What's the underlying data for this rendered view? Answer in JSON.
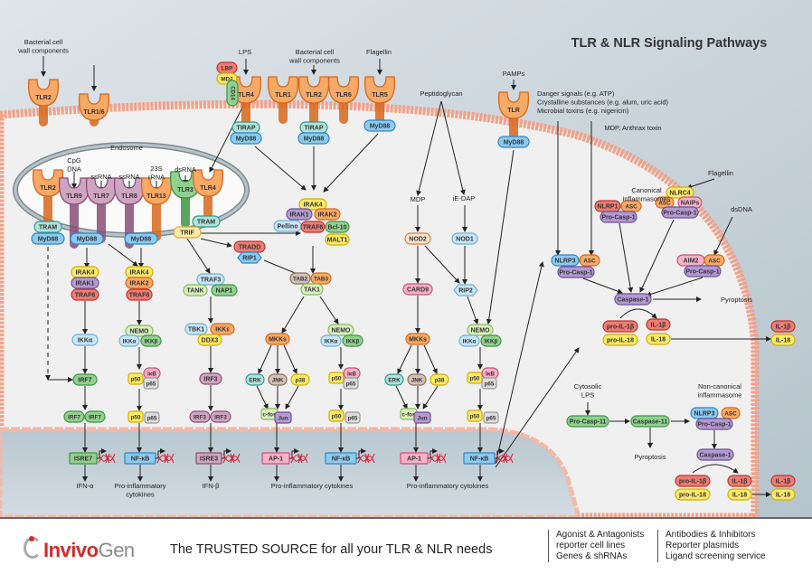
{
  "title": "TLR & NLR Signaling Pathways",
  "palette": {
    "yellow": [
      "#fbe96a",
      "#d2ad00"
    ],
    "lightyellow": [
      "#fde9a6",
      "#e0a93a"
    ],
    "purple": [
      "#b39ad2",
      "#6e4f9a"
    ],
    "orange": [
      "#f7a965",
      "#d8671b"
    ],
    "red": [
      "#ee7c74",
      "#c0332d"
    ],
    "blue": [
      "#8ccaf0",
      "#2f86c4"
    ],
    "lightblue": [
      "#c8e6f6",
      "#6fb0d6"
    ],
    "green": [
      "#92d08f",
      "#3c9642"
    ],
    "lightgreen": [
      "#d9f0bd",
      "#89b75c"
    ],
    "teal": [
      "#b1e2da",
      "#2c9a8c"
    ],
    "grey": [
      "#dcdcdc",
      "#999999"
    ],
    "pink": [
      "#f4b1c7",
      "#cc4f7a"
    ],
    "brown": [
      "#d3c0b6",
      "#8b6f62"
    ],
    "mauve": [
      "#cfa6c2",
      "#8a4d78"
    ],
    "nodeorange": [
      "#fbe3cf",
      "#e07a35"
    ],
    "membrane": "#f4a088",
    "dna": "#d6283a"
  },
  "labels": [
    {
      "id": "bact1",
      "lines": [
        "Bacterial cell",
        "wall components"
      ]
    },
    {
      "id": "lps",
      "lines": [
        "LPS"
      ]
    },
    {
      "id": "bact2",
      "lines": [
        "Bacterial cell",
        "wall components"
      ]
    },
    {
      "id": "flag1",
      "lines": [
        "Flagellin"
      ]
    },
    {
      "id": "pamps",
      "lines": [
        "PAMPs"
      ]
    },
    {
      "id": "pept",
      "lines": [
        "Peptidoglycan"
      ]
    },
    {
      "id": "danger",
      "lines": [
        "Danger signals (e.g. ATP)",
        "Crystalline substances (e.g. alum, uric acid)",
        "Microbial toxins (e.g. nigericin)"
      ]
    },
    {
      "id": "mdpanth",
      "lines": [
        "MDP, Anthrax toxin"
      ]
    },
    {
      "id": "flag2",
      "lines": [
        "Flagellin"
      ]
    },
    {
      "id": "canon",
      "lines": [
        "Canonical",
        "inflammasomes"
      ]
    },
    {
      "id": "dsdna",
      "lines": [
        "dsDNA"
      ]
    },
    {
      "id": "endosome",
      "lines": [
        "Endosome"
      ]
    },
    {
      "id": "cpg",
      "lines": [
        "CpG",
        "DNA"
      ]
    },
    {
      "id": "ssrna1",
      "lines": [
        "ssRNA"
      ]
    },
    {
      "id": "ssrna2",
      "lines": [
        "ssRNA"
      ]
    },
    {
      "id": "rrna",
      "lines": [
        "23S",
        "rRNA"
      ]
    },
    {
      "id": "dsrna",
      "lines": [
        "dsRNA"
      ]
    },
    {
      "id": "mdp",
      "lines": [
        "MDP"
      ]
    },
    {
      "id": "iedap",
      "lines": [
        "iE-DAP"
      ]
    },
    {
      "id": "pyro1",
      "lines": [
        "Pyroptosis"
      ]
    },
    {
      "id": "pyro2",
      "lines": [
        "Pyroptosis"
      ]
    },
    {
      "id": "cytlps",
      "lines": [
        "Cytosolic",
        "LPS"
      ]
    },
    {
      "id": "noncanon",
      "lines": [
        "Non-canonical",
        "inflammasome"
      ]
    },
    {
      "id": "ifna",
      "lines": [
        "IFN-α"
      ]
    },
    {
      "id": "proinfl1",
      "lines": [
        "Pro-inflammatory",
        "cytokines"
      ]
    },
    {
      "id": "ifnb",
      "lines": [
        "IFN-β"
      ]
    },
    {
      "id": "proinfl2",
      "lines": [
        "Pro-inflammatory cytokines"
      ]
    },
    {
      "id": "proinfl3",
      "lines": [
        "Pro-inflammatory cytokines"
      ]
    }
  ],
  "receptors": [
    {
      "id": "r_tlr2a",
      "label": "TLR2",
      "color": "orange"
    },
    {
      "id": "r_tlr16",
      "label": "TLR1/6",
      "color": "orange"
    },
    {
      "id": "r_tlr4a",
      "label": "TLR4",
      "color": "orange"
    },
    {
      "id": "r_tlr1",
      "label": "TLR1",
      "color": "orange"
    },
    {
      "id": "r_tlr2b",
      "label": "TLR2",
      "color": "orange"
    },
    {
      "id": "r_tlr6",
      "label": "TLR6",
      "color": "orange"
    },
    {
      "id": "r_tlr5",
      "label": "TLR5",
      "color": "orange"
    },
    {
      "id": "r_tlr",
      "label": "TLR",
      "color": "orange"
    },
    {
      "id": "r_tlr2c",
      "label": "TLR2",
      "color": "orange"
    },
    {
      "id": "r_tlr9",
      "label": "TLR9",
      "color": "mauve"
    },
    {
      "id": "r_tlr7",
      "label": "TLR7",
      "color": "mauve"
    },
    {
      "id": "r_tlr8",
      "label": "TLR8",
      "color": "mauve"
    },
    {
      "id": "r_tlr13",
      "label": "TLR13",
      "color": "orange"
    },
    {
      "id": "r_tlr3",
      "label": "TLR3",
      "color": "green"
    },
    {
      "id": "r_tlr4b",
      "label": "TLR4",
      "color": "orange"
    }
  ],
  "nodes": [
    {
      "id": "lbp",
      "label": "LBP",
      "color": "red"
    },
    {
      "id": "md2",
      "label": "MD2",
      "color": "yellow"
    },
    {
      "id": "cd14",
      "label": "CD14",
      "color": "green"
    },
    {
      "id": "tirap1",
      "label": "TIRAP",
      "color": "teal"
    },
    {
      "id": "myd_t4",
      "label": "MyD88",
      "color": "blue"
    },
    {
      "id": "tirap2",
      "label": "TIRAP",
      "color": "teal"
    },
    {
      "id": "myd_t2",
      "label": "MyD88",
      "color": "blue"
    },
    {
      "id": "myd_t5",
      "label": "MyD88",
      "color": "blue"
    },
    {
      "id": "myd_tlr",
      "label": "MyD88",
      "color": "blue"
    },
    {
      "id": "tram1",
      "label": "TRAM",
      "color": "teal"
    },
    {
      "id": "myd_a",
      "label": "MyD88",
      "color": "blue"
    },
    {
      "id": "myd_b",
      "label": "MyD88",
      "color": "blue"
    },
    {
      "id": "myd_c",
      "label": "MyD88",
      "color": "blue"
    },
    {
      "id": "tram2",
      "label": "TRAM",
      "color": "teal"
    },
    {
      "id": "trif",
      "label": "TRIF",
      "color": "lightyellow"
    },
    {
      "id": "irak4a",
      "label": "IRAK4",
      "color": "yellow"
    },
    {
      "id": "irak1a",
      "label": "IRAK1",
      "color": "purple"
    },
    {
      "id": "traf6a",
      "label": "TRAF6",
      "color": "red"
    },
    {
      "id": "ikkaa",
      "label": "IKKα",
      "color": "lightblue"
    },
    {
      "id": "irf7a",
      "label": "IRF7",
      "color": "green"
    },
    {
      "id": "irf7b",
      "label": "IRF7",
      "color": "green"
    },
    {
      "id": "irf7c",
      "label": "IRF7",
      "color": "green"
    },
    {
      "id": "isre7",
      "label": "ISRE7",
      "color": "green",
      "shape": "rect"
    },
    {
      "id": "irak4b",
      "label": "IRAK4",
      "color": "yellow"
    },
    {
      "id": "irak2b",
      "label": "IRAK2",
      "color": "orange"
    },
    {
      "id": "traf6b",
      "label": "TRAF6",
      "color": "red"
    },
    {
      "id": "nemoa",
      "label": "NEMO",
      "color": "lightgreen"
    },
    {
      "id": "ikkab",
      "label": "IKKα",
      "color": "lightblue"
    },
    {
      "id": "ikkbb",
      "label": "IKKβ",
      "color": "green"
    },
    {
      "id": "p50a",
      "label": "p50",
      "color": "yellow",
      "shape": "sq"
    },
    {
      "id": "ikba",
      "label": "IκB",
      "color": "pink"
    },
    {
      "id": "p65a",
      "label": "p65",
      "color": "grey",
      "shape": "sq"
    },
    {
      "id": "p50b",
      "label": "p50",
      "color": "yellow",
      "shape": "sq"
    },
    {
      "id": "p65b",
      "label": "p65",
      "color": "grey",
      "shape": "sq"
    },
    {
      "id": "nfkba",
      "label": "NF-κB",
      "color": "blue",
      "shape": "rect"
    },
    {
      "id": "tradd",
      "label": "TRADD",
      "color": "red"
    },
    {
      "id": "rip1",
      "label": "RIP1",
      "color": "blue",
      "shape": "hex"
    },
    {
      "id": "traf3",
      "label": "TRAF3",
      "color": "lightblue"
    },
    {
      "id": "tank",
      "label": "TANK",
      "color": "lightgreen"
    },
    {
      "id": "nap1",
      "label": "NAP1",
      "color": "green"
    },
    {
      "id": "tbk1",
      "label": "TBK1",
      "color": "lightblue"
    },
    {
      "id": "ikke",
      "label": "IKKε",
      "color": "orange"
    },
    {
      "id": "ddx3",
      "label": "DDX3",
      "color": "yellow"
    },
    {
      "id": "irf3a",
      "label": "IRF3",
      "color": "mauve"
    },
    {
      "id": "irf3b",
      "label": "IRF3",
      "color": "mauve"
    },
    {
      "id": "irf3c",
      "label": "IRF3",
      "color": "mauve"
    },
    {
      "id": "isre3",
      "label": "ISRE3",
      "color": "mauve",
      "shape": "rect"
    },
    {
      "id": "irak4c",
      "label": "IRAK4",
      "color": "yellow"
    },
    {
      "id": "irak1c",
      "label": "IRAK1",
      "color": "purple"
    },
    {
      "id": "irak2c",
      "label": "IRAK2",
      "color": "orange"
    },
    {
      "id": "pellino",
      "label": "Pellino",
      "color": "lightblue"
    },
    {
      "id": "bcl10",
      "label": "Bcl-10",
      "color": "green"
    },
    {
      "id": "malt1",
      "label": "MALT1",
      "color": "yellow"
    },
    {
      "id": "traf6c",
      "label": "TRAF6",
      "color": "red"
    },
    {
      "id": "tab2",
      "label": "TAB2",
      "color": "brown"
    },
    {
      "id": "tab3",
      "label": "TAB3",
      "color": "orange"
    },
    {
      "id": "tak1",
      "label": "TAK1",
      "color": "lightgreen"
    },
    {
      "id": "mkksa",
      "label": "MKKs",
      "color": "orange"
    },
    {
      "id": "erka",
      "label": "ERK",
      "color": "teal"
    },
    {
      "id": "jnka",
      "label": "JNK",
      "color": "brown"
    },
    {
      "id": "p38a",
      "label": "p38",
      "color": "yellow"
    },
    {
      "id": "cfosa",
      "label": "c-fos",
      "color": "lightgreen",
      "shape": "sq"
    },
    {
      "id": "juna",
      "label": "Jun",
      "color": "purple",
      "shape": "sq"
    },
    {
      "id": "ap1a",
      "label": "AP-1",
      "color": "pink",
      "shape": "rect"
    },
    {
      "id": "nemob",
      "label": "NEMO",
      "color": "lightgreen"
    },
    {
      "id": "ikkac",
      "label": "IKKα",
      "color": "lightblue"
    },
    {
      "id": "ikkbc",
      "label": "IKKβ",
      "color": "green"
    },
    {
      "id": "p50c",
      "label": "p50",
      "color": "yellow",
      "shape": "sq"
    },
    {
      "id": "ikbc",
      "label": "IκB",
      "color": "pink"
    },
    {
      "id": "p65c",
      "label": "p65",
      "color": "grey",
      "shape": "sq"
    },
    {
      "id": "p50d",
      "label": "p50",
      "color": "yellow",
      "shape": "sq"
    },
    {
      "id": "p65d",
      "label": "p65",
      "color": "grey",
      "shape": "sq"
    },
    {
      "id": "nfkbb",
      "label": "NF-κB",
      "color": "blue",
      "shape": "rect"
    },
    {
      "id": "nod2",
      "label": "NOD2",
      "color": "nodeorange"
    },
    {
      "id": "nod1",
      "label": "NOD1",
      "color": "lightblue"
    },
    {
      "id": "card9",
      "label": "CARD9",
      "color": "pink"
    },
    {
      "id": "rip2",
      "label": "RIP2",
      "color": "lightblue",
      "shape": "hex"
    },
    {
      "id": "mkksb",
      "label": "MKKs",
      "color": "orange"
    },
    {
      "id": "erkb",
      "label": "ERK",
      "color": "teal"
    },
    {
      "id": "jnkb",
      "label": "JNK",
      "color": "brown"
    },
    {
      "id": "p38b",
      "label": "p38",
      "color": "yellow"
    },
    {
      "id": "cfosb",
      "label": "c-fos",
      "color": "lightgreen",
      "shape": "sq"
    },
    {
      "id": "junb",
      "label": "Jun",
      "color": "purple",
      "shape": "sq"
    },
    {
      "id": "ap1b",
      "label": "AP-1",
      "color": "pink",
      "shape": "rect"
    },
    {
      "id": "nemoc",
      "label": "NEMO",
      "color": "lightgreen"
    },
    {
      "id": "ikkad",
      "label": "IKKα",
      "color": "lightblue"
    },
    {
      "id": "ikkbd",
      "label": "IKKβ",
      "color": "green"
    },
    {
      "id": "p50e",
      "label": "p50",
      "color": "yellow",
      "shape": "sq"
    },
    {
      "id": "ikbe",
      "label": "IκB",
      "color": "pink"
    },
    {
      "id": "p65e",
      "label": "p65",
      "color": "grey",
      "shape": "sq"
    },
    {
      "id": "p50f",
      "label": "p50",
      "color": "yellow",
      "shape": "sq"
    },
    {
      "id": "p65f",
      "label": "p65",
      "color": "grey",
      "shape": "sq"
    },
    {
      "id": "nfkbc",
      "label": "NF-κB",
      "color": "blue",
      "shape": "rect"
    },
    {
      "id": "nlrp1",
      "label": "NLRP1",
      "color": "red"
    },
    {
      "id": "asc1",
      "label": "ASC",
      "color": "orange"
    },
    {
      "id": "pc1a",
      "label": "Pro-Casp-1",
      "color": "purple"
    },
    {
      "id": "nlrc4",
      "label": "NLRC4",
      "color": "yellow"
    },
    {
      "id": "asc2",
      "label": "ASC",
      "color": "orange"
    },
    {
      "id": "naips",
      "label": "NAIPs",
      "color": "pink"
    },
    {
      "id": "pc1b",
      "label": "Pro-Casp-1",
      "color": "purple"
    },
    {
      "id": "nlrp3a",
      "label": "NLRP3",
      "color": "blue"
    },
    {
      "id": "asc3",
      "label": "ASC",
      "color": "orange"
    },
    {
      "id": "pc1c",
      "label": "Pro-Casp-1",
      "color": "purple"
    },
    {
      "id": "aim2",
      "label": "AIM2",
      "color": "pink"
    },
    {
      "id": "asc4",
      "label": "ASC",
      "color": "orange"
    },
    {
      "id": "pc1d",
      "label": "Pro-Casp-1",
      "color": "purple"
    },
    {
      "id": "casp1a",
      "label": "Caspase-1",
      "color": "purple"
    },
    {
      "id": "proil1ba",
      "label": "pro-IL-1β",
      "color": "red"
    },
    {
      "id": "proil18a",
      "label": "pro-IL-18",
      "color": "yellow"
    },
    {
      "id": "il1ba",
      "label": "IL-1β",
      "color": "red"
    },
    {
      "id": "il18a",
      "label": "IL-18",
      "color": "yellow"
    },
    {
      "id": "il1bo1",
      "label": "IL-1β",
      "color": "red"
    },
    {
      "id": "il18o1",
      "label": "IL-18",
      "color": "yellow"
    },
    {
      "id": "pc11",
      "label": "Pro-Casp-11",
      "color": "green"
    },
    {
      "id": "casp11",
      "label": "Caspase-11",
      "color": "green"
    },
    {
      "id": "nlrp3b",
      "label": "NLRP3",
      "color": "blue"
    },
    {
      "id": "asc5",
      "label": "ASC",
      "color": "orange"
    },
    {
      "id": "pc1e",
      "label": "Pro-Casp-1",
      "color": "purple"
    },
    {
      "id": "casp1b",
      "label": "Caspase-1",
      "color": "purple"
    },
    {
      "id": "proil1bb",
      "label": "pro-IL-1β",
      "color": "red"
    },
    {
      "id": "proil18b",
      "label": "pro-IL-18",
      "color": "yellow"
    },
    {
      "id": "il1bb",
      "label": "IL-1β",
      "color": "red"
    },
    {
      "id": "il18b",
      "label": "IL-18",
      "color": "yellow"
    },
    {
      "id": "il1bo2",
      "label": "IL-1β",
      "color": "red"
    },
    {
      "id": "il18o2",
      "label": "IL-18",
      "color": "yellow"
    }
  ],
  "footer": {
    "logo_red": "Invivo",
    "logo_grey": "Gen",
    "tagline": "The TRUSTED SOURCE for all your TLR & NLR needs",
    "col1": [
      "Agonist & Antagonists",
      "reporter cell lines",
      "Genes & shRNAs"
    ],
    "col2": [
      "Antibodies & Inhibitors",
      "Reporter plasmids",
      "Ligand screening service"
    ]
  }
}
